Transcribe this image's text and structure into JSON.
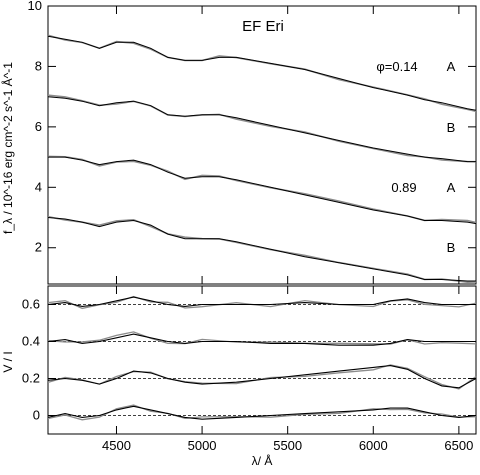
{
  "chart_data": [
    {
      "type": "line",
      "panel": "flux",
      "title": "EF Eri",
      "xlabel": "λ/ Å",
      "ylabel": "f_λ / 10^-16 erg cm^-2 s^-1 Å^-1",
      "xlim": [
        4100,
        6600
      ],
      "ylim": [
        0.8,
        10
      ],
      "x_ticks": [
        4500,
        5000,
        5500,
        6000,
        6500
      ],
      "y_ticks": [
        2,
        4,
        6,
        8,
        10
      ],
      "y_tick_labels": [
        "2",
        "4",
        "6",
        "8",
        "10"
      ],
      "colors": {
        "observed": "#8c8c8c",
        "model": "#000000"
      },
      "annotations": [
        {
          "text": "φ=0.14",
          "series": "Phase 0.14 A"
        },
        {
          "text": "A",
          "series": "Phase 0.14 A"
        },
        {
          "text": "B",
          "series": "Phase 0.14 B"
        },
        {
          "text": "0.89",
          "series": "Phase 0.89 A"
        },
        {
          "text": "A",
          "series": "Phase 0.89 A"
        },
        {
          "text": "B",
          "series": "Phase 0.89 B"
        }
      ],
      "series": [
        {
          "offset": 0,
          "x": [
            4100,
            4200,
            4300,
            4400,
            4500,
            4600,
            4700,
            4800,
            4900,
            5000,
            5100,
            5200,
            5400,
            5600,
            5800,
            6000,
            6200,
            6300,
            6400,
            6550,
            6600
          ],
          "y": [
            9.0,
            8.9,
            8.8,
            8.6,
            8.8,
            8.8,
            8.6,
            8.3,
            8.2,
            8.2,
            8.3,
            8.3,
            8.1,
            7.9,
            7.6,
            7.3,
            7.05,
            6.9,
            6.8,
            6.6,
            6.55
          ]
        },
        {
          "offset": 0,
          "x": [
            4100,
            4200,
            4300,
            4400,
            4500,
            4600,
            4700,
            4800,
            4900,
            5000,
            5100,
            5200,
            5400,
            5600,
            5800,
            6000,
            6200,
            6300,
            6400,
            6550,
            6600
          ],
          "y": [
            7.0,
            6.95,
            6.85,
            6.7,
            6.8,
            6.85,
            6.7,
            6.4,
            6.35,
            6.4,
            6.4,
            6.3,
            6.05,
            5.8,
            5.55,
            5.3,
            5.1,
            5.0,
            4.95,
            4.85,
            4.85
          ]
        },
        {
          "offset": 0,
          "x": [
            4100,
            4200,
            4300,
            4400,
            4500,
            4600,
            4700,
            4800,
            4900,
            5000,
            5100,
            5200,
            5400,
            5600,
            5800,
            6000,
            6200,
            6300,
            6400,
            6550,
            6600
          ],
          "y": [
            5.0,
            5.0,
            4.9,
            4.75,
            4.85,
            4.9,
            4.75,
            4.5,
            4.3,
            4.35,
            4.35,
            4.25,
            4.0,
            3.75,
            3.5,
            3.25,
            3.05,
            2.9,
            2.9,
            2.85,
            2.8
          ]
        },
        {
          "offset": 0,
          "x": [
            4100,
            4200,
            4300,
            4400,
            4500,
            4600,
            4700,
            4800,
            4900,
            5000,
            5100,
            5200,
            5400,
            5600,
            5800,
            6000,
            6200,
            6300,
            6400,
            6550,
            6600
          ],
          "y": [
            3.0,
            2.95,
            2.85,
            2.7,
            2.85,
            2.9,
            2.75,
            2.45,
            2.3,
            2.3,
            2.3,
            2.2,
            1.95,
            1.7,
            1.5,
            1.3,
            1.1,
            0.95,
            0.95,
            0.9,
            0.9
          ]
        }
      ]
    },
    {
      "type": "line",
      "panel": "polarization",
      "xlabel": "λ/ Å",
      "ylabel": "V / I",
      "xlim": [
        4100,
        6600
      ],
      "ylim": [
        -0.1,
        0.7
      ],
      "x_ticks": [
        4500,
        5000,
        5500,
        6000,
        6500
      ],
      "x_tick_labels": [
        "4500",
        "5000",
        "5500",
        "6000",
        "6500"
      ],
      "y_ticks": [
        0,
        0.2,
        0.4,
        0.6
      ],
      "y_tick_labels": [
        "0",
        "0.2",
        "0.4",
        "0.6"
      ],
      "colors": {
        "observed": "#8c8c8c",
        "model": "#000000",
        "baseline": "#000000"
      },
      "series": [
        {
          "baseline": 0.6,
          "x": [
            4100,
            4200,
            4300,
            4400,
            4500,
            4600,
            4700,
            4800,
            4900,
            5000,
            5200,
            5400,
            5600,
            5800,
            6000,
            6100,
            6200,
            6300,
            6400,
            6500,
            6600
          ],
          "y": [
            0.6,
            0.61,
            0.59,
            0.6,
            0.62,
            0.64,
            0.62,
            0.6,
            0.59,
            0.6,
            0.6,
            0.6,
            0.61,
            0.6,
            0.6,
            0.62,
            0.63,
            0.61,
            0.6,
            0.6,
            0.6
          ]
        },
        {
          "baseline": 0.4,
          "x": [
            4100,
            4200,
            4300,
            4400,
            4500,
            4600,
            4700,
            4800,
            4900,
            5000,
            5200,
            5400,
            5600,
            5800,
            6000,
            6100,
            6200,
            6300,
            6400,
            6500,
            6600
          ],
          "y": [
            0.4,
            0.41,
            0.39,
            0.4,
            0.42,
            0.44,
            0.42,
            0.4,
            0.39,
            0.4,
            0.4,
            0.39,
            0.39,
            0.38,
            0.38,
            0.39,
            0.41,
            0.4,
            0.4,
            0.4,
            0.4
          ]
        },
        {
          "baseline": 0.2,
          "x": [
            4100,
            4200,
            4300,
            4400,
            4500,
            4600,
            4700,
            4800,
            4900,
            5000,
            5200,
            5400,
            5600,
            5800,
            6000,
            6100,
            6200,
            6300,
            6400,
            6500,
            6600
          ],
          "y": [
            0.19,
            0.2,
            0.19,
            0.17,
            0.2,
            0.24,
            0.23,
            0.2,
            0.18,
            0.17,
            0.18,
            0.2,
            0.22,
            0.24,
            0.26,
            0.27,
            0.25,
            0.2,
            0.16,
            0.15,
            0.2
          ]
        },
        {
          "baseline": 0,
          "x": [
            4100,
            4200,
            4300,
            4400,
            4500,
            4600,
            4700,
            4800,
            4900,
            5000,
            5200,
            5400,
            5600,
            5800,
            6000,
            6100,
            6200,
            6300,
            6400,
            6500,
            6600
          ],
          "y": [
            -0.01,
            0.01,
            -0.01,
            0.0,
            0.03,
            0.05,
            0.03,
            0.01,
            -0.01,
            -0.02,
            -0.01,
            0.0,
            0.01,
            0.02,
            0.03,
            0.04,
            0.04,
            0.02,
            0.0,
            -0.01,
            0.0
          ]
        }
      ]
    }
  ]
}
